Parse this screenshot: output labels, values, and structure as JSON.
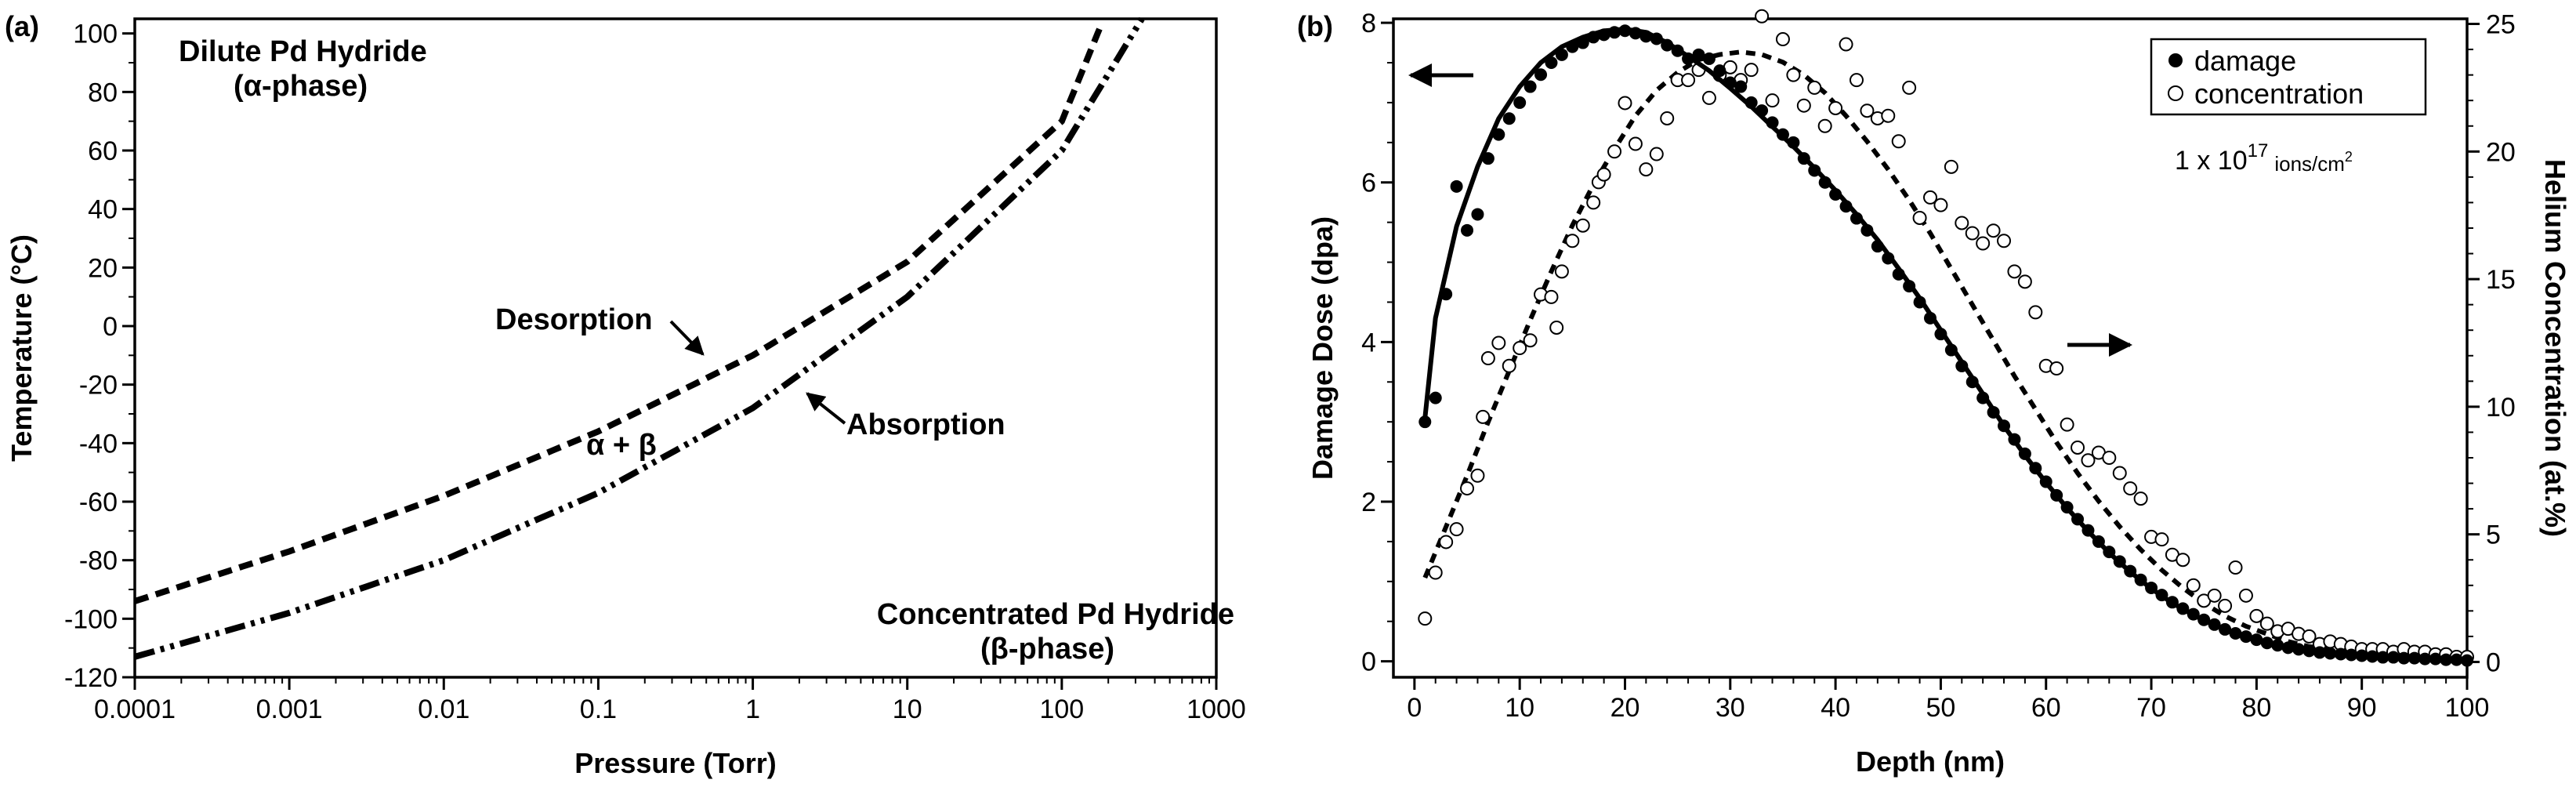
{
  "chart_data": [
    {
      "panel_label": "(a)",
      "type": "line",
      "xscale": "log",
      "xlabel": "Pressure (Torr)",
      "ylabel": "Temperature (°C)",
      "xlim": [
        0.0001,
        1000
      ],
      "ylim": [
        -120,
        105
      ],
      "xticks": [
        "0.0001",
        "0.001",
        "0.01",
        "0.1",
        "1",
        "10",
        "100",
        "1000"
      ],
      "yticks": [
        "100",
        "80",
        "60",
        "40",
        "20",
        "0",
        "-20",
        "-40",
        "-60",
        "-80",
        "-100",
        "-120"
      ],
      "series": [
        {
          "name": "Desorption",
          "style": "dashed",
          "points": [
            [
              0.0001,
              -94
            ],
            [
              0.001,
              -77
            ],
            [
              0.01,
              -58
            ],
            [
              0.1,
              -36
            ],
            [
              1,
              -10
            ],
            [
              10,
              22
            ],
            [
              100,
              70
            ],
            [
              180,
              103
            ]
          ]
        },
        {
          "name": "Absorption",
          "style": "dash-dot-dot",
          "points": [
            [
              0.0001,
              -113
            ],
            [
              0.001,
              -98
            ],
            [
              0.01,
              -80
            ],
            [
              0.1,
              -57
            ],
            [
              1,
              -28
            ],
            [
              10,
              10
            ],
            [
              100,
              60
            ],
            [
              330,
              105
            ]
          ]
        }
      ],
      "annotations": {
        "top_left_line1": "Dilute Pd Hydride",
        "top_left_line2": "(α-phase)",
        "desorption": "Desorption",
        "absorption": "Absorption",
        "two_phase": "α + β",
        "bottom_right_line1": "Concentrated Pd Hydride",
        "bottom_right_line2": "(β-phase)"
      }
    },
    {
      "panel_label": "(b)",
      "type": "scatter",
      "xlabel": "Depth (nm)",
      "ylabel": "Damage Dose (dpa)",
      "y2label": "Helium Concentration (at.%)",
      "xlim": [
        -2,
        100
      ],
      "ylim": [
        -0.2,
        8.05
      ],
      "y2lim": [
        -0.6,
        25.2
      ],
      "xticks": [
        "0",
        "10",
        "20",
        "30",
        "40",
        "50",
        "60",
        "70",
        "80",
        "90",
        "100"
      ],
      "yticks": [
        "0",
        "2",
        "4",
        "6",
        "8"
      ],
      "y2ticks": [
        "0",
        "5",
        "10",
        "15",
        "20",
        "25"
      ],
      "legend": [
        "damage",
        "concentration"
      ],
      "fluence_prefix": "1 x 10",
      "fluence_exponent": "17",
      "fluence_unit": "ions/cm",
      "fluence_unit_exp": "2",
      "damage_points": [
        [
          1,
          3.0
        ],
        [
          2,
          3.3
        ],
        [
          3,
          4.6
        ],
        [
          4,
          5.95
        ],
        [
          5,
          5.4
        ],
        [
          6,
          5.6
        ],
        [
          7,
          6.3
        ],
        [
          8,
          6.6
        ],
        [
          9,
          6.8
        ],
        [
          10,
          7.0
        ],
        [
          11,
          7.2
        ],
        [
          12,
          7.35
        ],
        [
          13,
          7.5
        ],
        [
          14,
          7.6
        ],
        [
          15,
          7.7
        ],
        [
          16,
          7.75
        ],
        [
          17,
          7.82
        ],
        [
          18,
          7.85
        ],
        [
          19,
          7.88
        ],
        [
          20,
          7.9
        ],
        [
          21,
          7.87
        ],
        [
          22,
          7.83
        ],
        [
          23,
          7.8
        ],
        [
          24,
          7.72
        ],
        [
          25,
          7.65
        ],
        [
          26,
          7.55
        ],
        [
          27,
          7.6
        ],
        [
          28,
          7.55
        ],
        [
          29,
          7.4
        ],
        [
          30,
          7.25
        ],
        [
          31,
          7.2
        ],
        [
          32,
          7.0
        ],
        [
          33,
          6.9
        ],
        [
          34,
          6.75
        ],
        [
          35,
          6.6
        ],
        [
          36,
          6.5
        ],
        [
          37,
          6.3
        ],
        [
          38,
          6.15
        ],
        [
          39,
          6.0
        ],
        [
          40,
          5.85
        ],
        [
          41,
          5.7
        ],
        [
          42,
          5.55
        ],
        [
          43,
          5.4
        ],
        [
          44,
          5.2
        ],
        [
          45,
          5.05
        ],
        [
          46,
          4.85
        ],
        [
          47,
          4.7
        ],
        [
          48,
          4.5
        ],
        [
          49,
          4.3
        ],
        [
          50,
          4.1
        ],
        [
          51,
          3.9
        ],
        [
          52,
          3.7
        ],
        [
          53,
          3.5
        ],
        [
          54,
          3.3
        ],
        [
          55,
          3.12
        ],
        [
          56,
          2.95
        ],
        [
          57,
          2.78
        ],
        [
          58,
          2.6
        ],
        [
          59,
          2.42
        ],
        [
          60,
          2.25
        ],
        [
          61,
          2.08
        ],
        [
          62,
          1.93
        ],
        [
          63,
          1.78
        ],
        [
          64,
          1.64
        ],
        [
          65,
          1.5
        ],
        [
          66,
          1.37
        ],
        [
          67,
          1.25
        ],
        [
          68,
          1.13
        ],
        [
          69,
          1.02
        ],
        [
          70,
          0.92
        ],
        [
          71,
          0.83
        ],
        [
          72,
          0.74
        ],
        [
          73,
          0.66
        ],
        [
          74,
          0.59
        ],
        [
          75,
          0.52
        ],
        [
          76,
          0.46
        ],
        [
          77,
          0.4
        ],
        [
          78,
          0.35
        ],
        [
          79,
          0.31
        ],
        [
          80,
          0.27
        ],
        [
          81,
          0.23
        ],
        [
          82,
          0.2
        ],
        [
          83,
          0.17
        ],
        [
          84,
          0.15
        ],
        [
          85,
          0.13
        ],
        [
          86,
          0.11
        ],
        [
          87,
          0.1
        ],
        [
          88,
          0.09
        ],
        [
          89,
          0.08
        ],
        [
          90,
          0.07
        ],
        [
          91,
          0.06
        ],
        [
          92,
          0.05
        ],
        [
          93,
          0.05
        ],
        [
          94,
          0.04
        ],
        [
          95,
          0.04
        ],
        [
          96,
          0.03
        ],
        [
          97,
          0.03
        ],
        [
          98,
          0.02
        ],
        [
          99,
          0.02
        ],
        [
          100,
          0.01
        ]
      ],
      "damage_fit": [
        [
          1,
          3.05
        ],
        [
          2,
          4.3
        ],
        [
          4,
          5.45
        ],
        [
          6,
          6.2
        ],
        [
          8,
          6.8
        ],
        [
          10,
          7.2
        ],
        [
          12,
          7.5
        ],
        [
          14,
          7.7
        ],
        [
          16,
          7.82
        ],
        [
          18,
          7.9
        ],
        [
          20,
          7.92
        ],
        [
          22,
          7.88
        ],
        [
          24,
          7.75
        ],
        [
          26,
          7.58
        ],
        [
          28,
          7.4
        ],
        [
          30,
          7.18
        ],
        [
          32,
          6.95
        ],
        [
          34,
          6.7
        ],
        [
          36,
          6.45
        ],
        [
          38,
          6.18
        ],
        [
          40,
          5.9
        ],
        [
          42,
          5.6
        ],
        [
          44,
          5.28
        ],
        [
          46,
          4.92
        ],
        [
          48,
          4.55
        ],
        [
          50,
          4.15
        ],
        [
          52,
          3.75
        ],
        [
          54,
          3.35
        ],
        [
          56,
          2.95
        ],
        [
          58,
          2.58
        ],
        [
          60,
          2.24
        ],
        [
          62,
          1.92
        ],
        [
          64,
          1.63
        ],
        [
          66,
          1.36
        ],
        [
          68,
          1.12
        ],
        [
          70,
          0.91
        ],
        [
          72,
          0.73
        ],
        [
          74,
          0.58
        ],
        [
          76,
          0.45
        ],
        [
          78,
          0.35
        ],
        [
          80,
          0.27
        ],
        [
          82,
          0.2
        ],
        [
          84,
          0.15
        ],
        [
          86,
          0.11
        ],
        [
          88,
          0.08
        ],
        [
          90,
          0.06
        ],
        [
          92,
          0.05
        ],
        [
          94,
          0.04
        ],
        [
          96,
          0.03
        ],
        [
          98,
          0.02
        ],
        [
          100,
          0.02
        ]
      ],
      "concentration_points": [
        [
          1,
          1.7
        ],
        [
          2,
          3.5
        ],
        [
          3,
          4.7
        ],
        [
          4,
          5.2
        ],
        [
          5,
          6.8
        ],
        [
          6,
          7.3
        ],
        [
          6.5,
          9.6
        ],
        [
          7,
          11.9
        ],
        [
          8,
          12.5
        ],
        [
          9,
          11.6
        ],
        [
          10,
          12.3
        ],
        [
          11,
          12.6
        ],
        [
          12,
          14.4
        ],
        [
          13,
          14.3
        ],
        [
          13.5,
          13.1
        ],
        [
          14,
          15.3
        ],
        [
          15,
          16.5
        ],
        [
          16,
          17.1
        ],
        [
          17,
          18.0
        ],
        [
          17.5,
          18.8
        ],
        [
          18,
          19.1
        ],
        [
          19,
          20.0
        ],
        [
          20,
          21.9
        ],
        [
          21,
          20.3
        ],
        [
          22,
          19.3
        ],
        [
          23,
          19.9
        ],
        [
          24,
          21.3
        ],
        [
          25,
          22.8
        ],
        [
          26,
          22.8
        ],
        [
          27,
          23.2
        ],
        [
          28,
          22.1
        ],
        [
          29,
          23.0
        ],
        [
          30,
          23.3
        ],
        [
          31,
          22.8
        ],
        [
          32,
          23.2
        ],
        [
          33,
          25.3
        ],
        [
          34,
          22.0
        ],
        [
          35,
          24.4
        ],
        [
          36,
          23.0
        ],
        [
          37,
          21.8
        ],
        [
          38,
          22.5
        ],
        [
          39,
          21.0
        ],
        [
          40,
          21.7
        ],
        [
          41,
          24.2
        ],
        [
          42,
          22.8
        ],
        [
          43,
          21.6
        ],
        [
          44,
          21.3
        ],
        [
          45,
          21.4
        ],
        [
          46,
          20.4
        ],
        [
          47,
          22.5
        ],
        [
          48,
          17.4
        ],
        [
          49,
          18.2
        ],
        [
          50,
          17.9
        ],
        [
          51,
          19.4
        ],
        [
          52,
          17.2
        ],
        [
          53,
          16.8
        ],
        [
          54,
          16.4
        ],
        [
          55,
          16.9
        ],
        [
          56,
          16.5
        ],
        [
          57,
          15.3
        ],
        [
          58,
          14.9
        ],
        [
          59,
          13.7
        ],
        [
          60,
          11.6
        ],
        [
          61,
          11.5
        ],
        [
          62,
          9.3
        ],
        [
          63,
          8.4
        ],
        [
          64,
          7.9
        ],
        [
          65,
          8.2
        ],
        [
          66,
          8.0
        ],
        [
          67,
          7.4
        ],
        [
          68,
          6.8
        ],
        [
          69,
          6.4
        ],
        [
          70,
          4.9
        ],
        [
          71,
          4.8
        ],
        [
          72,
          4.2
        ],
        [
          73,
          4.0
        ],
        [
          74,
          3.0
        ],
        [
          75,
          2.4
        ],
        [
          76,
          2.6
        ],
        [
          77,
          2.2
        ],
        [
          78,
          3.7
        ],
        [
          79,
          2.6
        ],
        [
          80,
          1.8
        ],
        [
          81,
          1.5
        ],
        [
          82,
          1.2
        ],
        [
          83,
          1.3
        ],
        [
          84,
          1.1
        ],
        [
          85,
          1.0
        ],
        [
          86,
          0.7
        ],
        [
          87,
          0.8
        ],
        [
          88,
          0.7
        ],
        [
          89,
          0.6
        ],
        [
          90,
          0.5
        ],
        [
          91,
          0.5
        ],
        [
          92,
          0.5
        ],
        [
          93,
          0.4
        ],
        [
          94,
          0.5
        ],
        [
          95,
          0.4
        ],
        [
          96,
          0.4
        ],
        [
          97,
          0.3
        ],
        [
          98,
          0.3
        ],
        [
          99,
          0.2
        ],
        [
          100,
          0.2
        ]
      ],
      "concentration_fit": [
        [
          1,
          3.3
        ],
        [
          3,
          5.3
        ],
        [
          5,
          7.3
        ],
        [
          7,
          9.4
        ],
        [
          9,
          11.4
        ],
        [
          11,
          13.4
        ],
        [
          13,
          15.3
        ],
        [
          15,
          17.1
        ],
        [
          17,
          18.7
        ],
        [
          19,
          20.1
        ],
        [
          21,
          21.4
        ],
        [
          23,
          22.4
        ],
        [
          25,
          23.1
        ],
        [
          27,
          23.6
        ],
        [
          29,
          23.8
        ],
        [
          31,
          23.9
        ],
        [
          33,
          23.8
        ],
        [
          35,
          23.5
        ],
        [
          37,
          23.0
        ],
        [
          39,
          22.3
        ],
        [
          41,
          21.4
        ],
        [
          43,
          20.4
        ],
        [
          45,
          19.3
        ],
        [
          47,
          18.1
        ],
        [
          49,
          16.8
        ],
        [
          51,
          15.4
        ],
        [
          53,
          14.0
        ],
        [
          55,
          12.6
        ],
        [
          57,
          11.2
        ],
        [
          59,
          9.9
        ],
        [
          61,
          8.6
        ],
        [
          63,
          7.4
        ],
        [
          65,
          6.3
        ],
        [
          67,
          5.3
        ],
        [
          69,
          4.4
        ],
        [
          71,
          3.6
        ],
        [
          73,
          2.9
        ],
        [
          75,
          2.3
        ],
        [
          77,
          1.8
        ],
        [
          79,
          1.4
        ],
        [
          81,
          1.1
        ],
        [
          83,
          0.8
        ],
        [
          85,
          0.6
        ],
        [
          87,
          0.5
        ],
        [
          89,
          0.4
        ],
        [
          91,
          0.3
        ],
        [
          93,
          0.2
        ],
        [
          95,
          0.2
        ],
        [
          97,
          0.1
        ],
        [
          99,
          0.1
        ],
        [
          100,
          0.1
        ]
      ]
    }
  ]
}
